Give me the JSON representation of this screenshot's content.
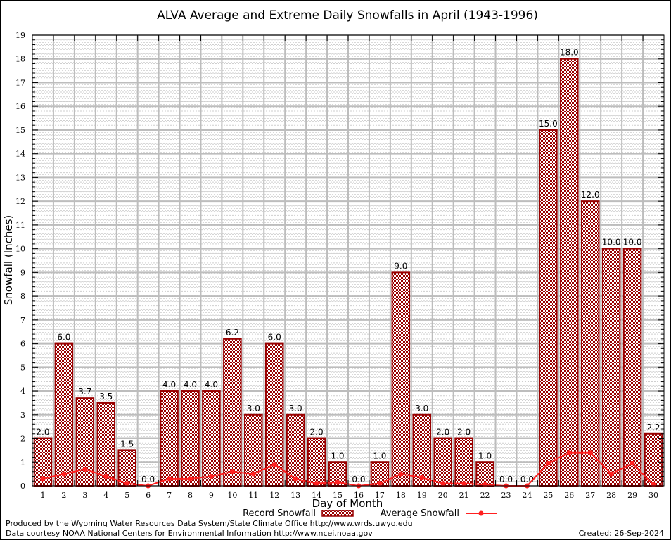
{
  "chart_data": {
    "type": "bar",
    "title": "ALVA Average and Extreme Daily Snowfalls in April (1943-1996)",
    "xlabel": "Day of Month",
    "ylabel": "Snowfall (Inches)",
    "ylim": [
      0,
      19
    ],
    "yticks": [
      "0",
      "1",
      "2",
      "3",
      "4",
      "5",
      "6",
      "7",
      "8",
      "9",
      "10",
      "11",
      "12",
      "13",
      "14",
      "15",
      "16",
      "17",
      "18",
      "19"
    ],
    "categories": [
      "1",
      "2",
      "3",
      "4",
      "5",
      "6",
      "7",
      "8",
      "9",
      "10",
      "11",
      "12",
      "13",
      "14",
      "15",
      "16",
      "17",
      "18",
      "19",
      "20",
      "21",
      "22",
      "23",
      "24",
      "25",
      "26",
      "27",
      "28",
      "29",
      "30"
    ],
    "grid": true,
    "legend_position": "bottom",
    "series": [
      {
        "name": "Record Snowfall",
        "type": "bar",
        "color": "#990000",
        "values": [
          2.0,
          6.0,
          3.7,
          3.5,
          1.5,
          0.0,
          4.0,
          4.0,
          4.0,
          6.2,
          3.0,
          6.0,
          3.0,
          2.0,
          1.0,
          0.0,
          1.0,
          9.0,
          3.0,
          2.0,
          2.0,
          1.0,
          0.0,
          0.0,
          15.0,
          18.0,
          12.0,
          10.0,
          10.0,
          2.2
        ],
        "labels": [
          "2.0",
          "6.0",
          "3.7",
          "3.5",
          "1.5",
          "0.0",
          "4.0",
          "4.0",
          "4.0",
          "6.2",
          "3.0",
          "6.0",
          "3.0",
          "2.0",
          "1.0",
          "0.0",
          "1.0",
          "9.0",
          "3.0",
          "2.0",
          "2.0",
          "1.0",
          "0.0",
          "0.0",
          "15.0",
          "18.0",
          "12.0",
          "10.0",
          "10.0",
          "2.2"
        ]
      },
      {
        "name": "Average Snowfall",
        "type": "line",
        "color": "#ff2020",
        "values": [
          0.3,
          0.5,
          0.7,
          0.4,
          0.1,
          0.0,
          0.3,
          0.3,
          0.4,
          0.6,
          0.5,
          0.9,
          0.3,
          0.1,
          0.15,
          0.0,
          0.1,
          0.5,
          0.35,
          0.1,
          0.1,
          0.05,
          0.0,
          0.0,
          0.95,
          1.4,
          1.4,
          0.5,
          0.95,
          0.05
        ]
      }
    ]
  },
  "footer": {
    "produced_by": "Produced by the Wyoming Water Resources Data System/State Climate Office http://www.wrds.uwyo.edu",
    "data_courtesy": "Data courtesy NOAA National Centers for Environmental Information http://www.ncei.noaa.gov",
    "created": "Created: 26-Sep-2024"
  }
}
